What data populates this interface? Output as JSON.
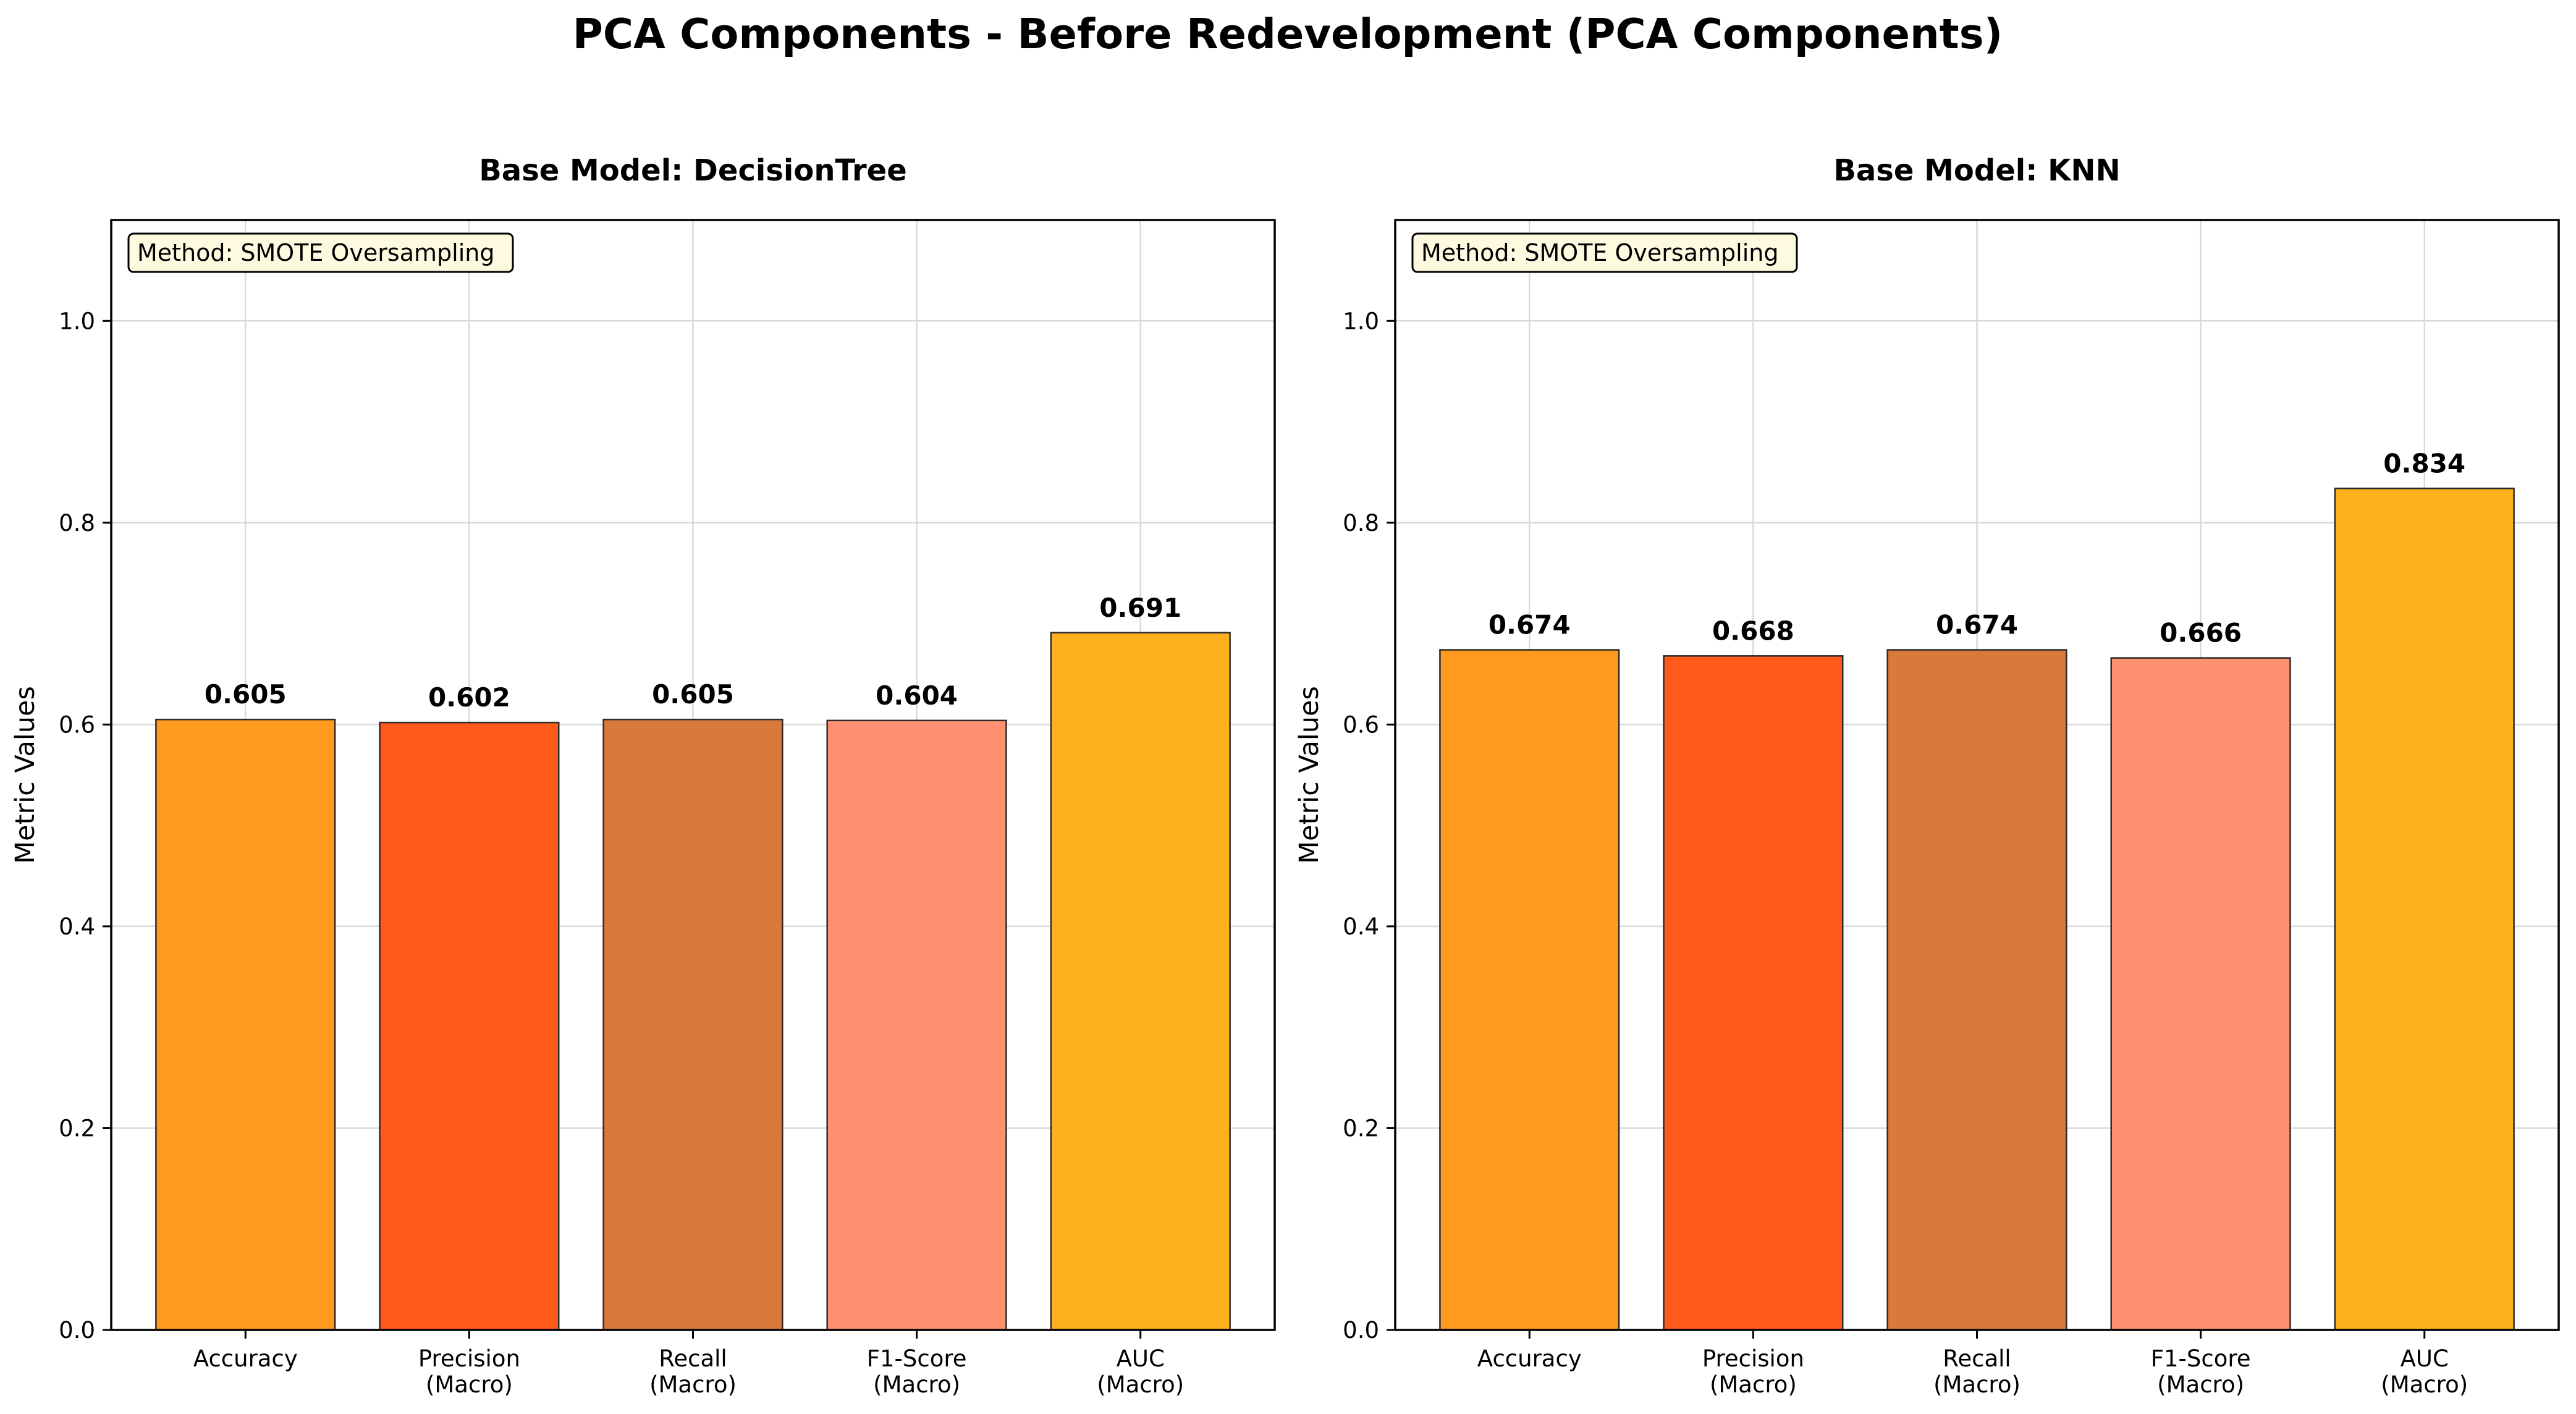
{
  "figure": {
    "title": "PCA Components - Before Redevelopment (PCA Components)"
  },
  "colors": [
    "#ff9a1f",
    "#ff5a1a",
    "#d9793b",
    "#ff9070",
    "#ffb01f"
  ],
  "chart_data": [
    {
      "type": "bar",
      "title": "Base Model: DecisionTree",
      "annotation": "Method: SMOTE Oversampling",
      "ylabel": "Metric Values",
      "xlabel": "",
      "ylim": [
        0,
        1.1
      ],
      "yticks": [
        0.0,
        0.2,
        0.4,
        0.6,
        0.8,
        1.0
      ],
      "grid": true,
      "categories": [
        [
          "Accuracy"
        ],
        [
          "Precision",
          "(Macro)"
        ],
        [
          "Recall",
          "(Macro)"
        ],
        [
          "F1-Score",
          "(Macro)"
        ],
        [
          "AUC",
          "(Macro)"
        ]
      ],
      "values": [
        0.605,
        0.602,
        0.605,
        0.604,
        0.691
      ],
      "value_labels": [
        "0.605",
        "0.602",
        "0.605",
        "0.604",
        "0.691"
      ]
    },
    {
      "type": "bar",
      "title": "Base Model: KNN",
      "annotation": "Method: SMOTE Oversampling",
      "ylabel": "Metric Values",
      "xlabel": "",
      "ylim": [
        0,
        1.1
      ],
      "yticks": [
        0.0,
        0.2,
        0.4,
        0.6,
        0.8,
        1.0
      ],
      "grid": true,
      "categories": [
        [
          "Accuracy"
        ],
        [
          "Precision",
          "(Macro)"
        ],
        [
          "Recall",
          "(Macro)"
        ],
        [
          "F1-Score",
          "(Macro)"
        ],
        [
          "AUC",
          "(Macro)"
        ]
      ],
      "values": [
        0.674,
        0.668,
        0.674,
        0.666,
        0.834
      ],
      "value_labels": [
        "0.674",
        "0.668",
        "0.674",
        "0.666",
        "0.834"
      ]
    }
  ]
}
